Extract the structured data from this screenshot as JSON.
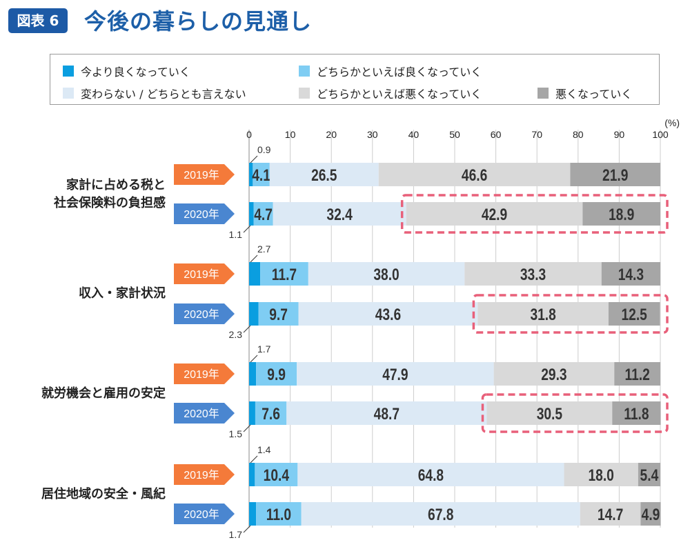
{
  "header": {
    "badge": "図表 6",
    "title": "今後の暮らしの見通し"
  },
  "chart_data": {
    "type": "bar",
    "orientation": "horizontal-stacked",
    "unit_label": "(%)",
    "xlim": [
      0,
      100
    ],
    "ticks": [
      0,
      10,
      20,
      30,
      40,
      50,
      60,
      70,
      80,
      90,
      100
    ],
    "grid": true,
    "legend_placement": "top",
    "series_names": [
      "今より良くなっていく",
      "どちらかといえば良くなっていく",
      "変わらない / どちらとも言えない",
      "どちらかといえば悪くなっていく",
      "悪くなっていく"
    ],
    "colors": [
      "#0a9ee0",
      "#7fcdf3",
      "#dce9f5",
      "#d9d9d9",
      "#a6a6a6"
    ],
    "year_colors": {
      "2019年": "#f47a3a",
      "2020年": "#4a86d0"
    },
    "highlight_color": "#e8607a",
    "categories": [
      {
        "label": "家計に占める税と\n社会保険料の負担感",
        "rows": [
          {
            "year": "2019年",
            "values": [
              0.9,
              4.1,
              26.5,
              46.6,
              21.9
            ]
          },
          {
            "year": "2020年",
            "values": [
              1.1,
              4.7,
              32.4,
              42.9,
              18.9
            ],
            "highlight": true
          }
        ]
      },
      {
        "label": "収入・家計状況",
        "rows": [
          {
            "year": "2019年",
            "values": [
              2.7,
              11.7,
              38.0,
              33.3,
              14.3
            ]
          },
          {
            "year": "2020年",
            "values": [
              2.3,
              9.7,
              43.6,
              31.8,
              12.5
            ],
            "highlight": true
          }
        ]
      },
      {
        "label": "就労機会と雇用の安定",
        "rows": [
          {
            "year": "2019年",
            "values": [
              1.7,
              9.9,
              47.9,
              29.3,
              11.2
            ]
          },
          {
            "year": "2020年",
            "values": [
              1.5,
              7.6,
              48.7,
              30.5,
              11.8
            ],
            "highlight": true
          }
        ]
      },
      {
        "label": "居住地域の安全・風紀",
        "rows": [
          {
            "year": "2019年",
            "values": [
              1.4,
              10.4,
              64.8,
              18.0,
              5.4
            ]
          },
          {
            "year": "2020年",
            "values": [
              1.7,
              11.0,
              67.8,
              14.7,
              4.9
            ]
          }
        ]
      }
    ]
  }
}
